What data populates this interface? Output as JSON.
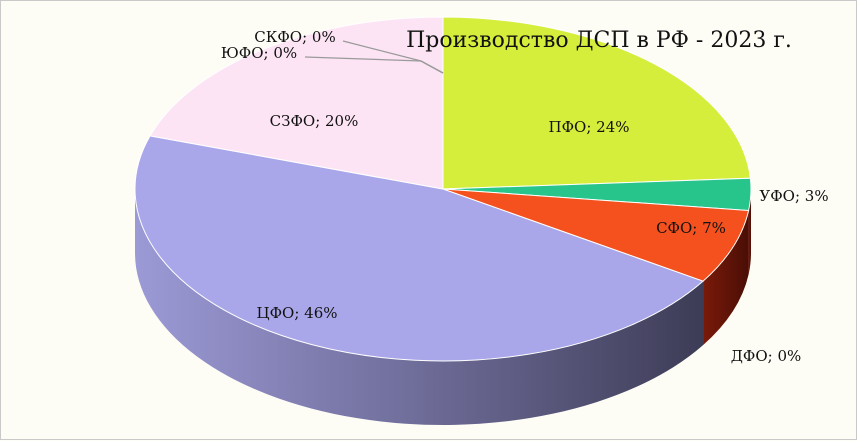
{
  "chart_data": {
    "type": "pie",
    "title": "Производство ДСП в РФ - 2023 г.",
    "slices": [
      {
        "name": "ПФО",
        "value": 24,
        "label": "ПФО; 24%",
        "color": "#d5ee3b"
      },
      {
        "name": "УФО",
        "value": 3,
        "label": "УФО; 3%",
        "color": "#27c48b"
      },
      {
        "name": "СФО",
        "value": 7,
        "label": "СФО; 7%",
        "color": "#f4511e"
      },
      {
        "name": "ДФО",
        "value": 0,
        "label": "ДФО; 0%",
        "color": "#7a1a0a"
      },
      {
        "name": "ЦФО",
        "value": 46,
        "label": "ЦФО; 46%",
        "color": "#a9a7e9"
      },
      {
        "name": "СЗФО",
        "value": 20,
        "label": "СЗФО; 20%",
        "color": "#fce4f4"
      },
      {
        "name": "ЮФО",
        "value": 0,
        "label": "ЮФО; 0%",
        "color": "#e8e8e8"
      },
      {
        "name": "СКФО",
        "value": 0,
        "label": "СКФО; 0%",
        "color": "#e8e8e8"
      }
    ]
  }
}
